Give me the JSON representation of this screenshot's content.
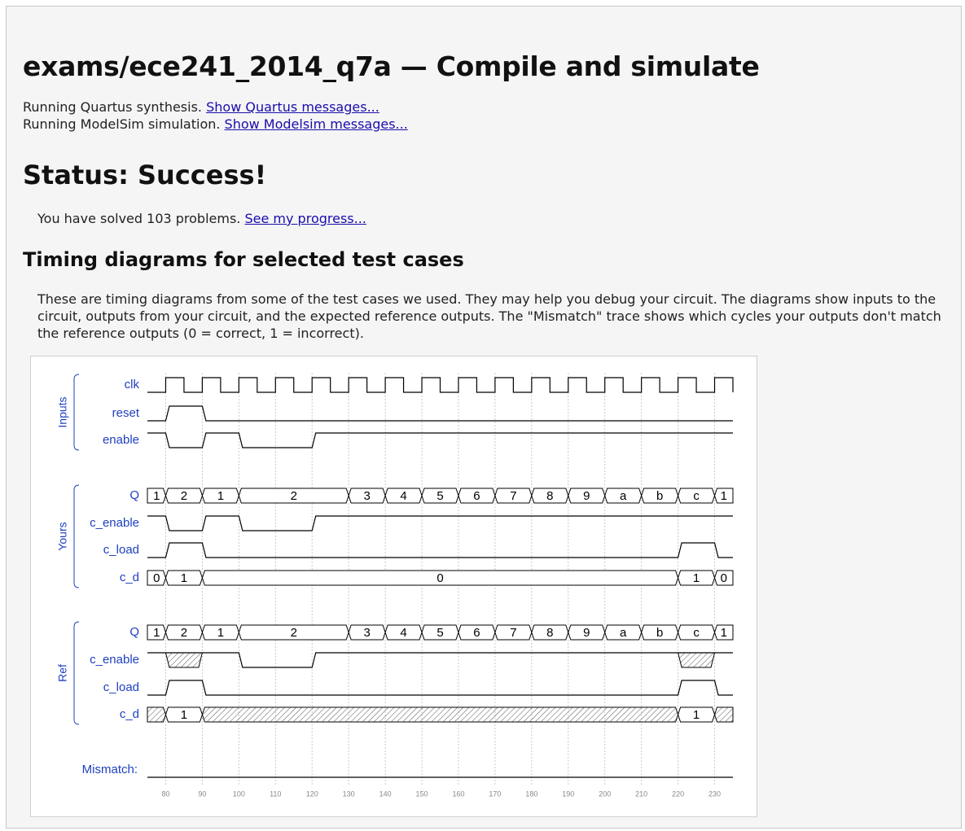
{
  "header": {
    "title": "exams/ece241_2014_q7a — Compile and simulate",
    "quartus_text": "Running Quartus synthesis.",
    "quartus_link": "Show Quartus messages...",
    "modelsim_text": "Running ModelSim simulation.",
    "modelsim_link": "Show Modelsim messages..."
  },
  "status": {
    "heading": "Status: Success!",
    "solved_text": "You have solved 103 problems.",
    "progress_link": "See my progress..."
  },
  "timing": {
    "heading": "Timing diagrams for selected test cases",
    "description": "These are timing diagrams from some of the test cases we used. They may help you debug your circuit. The diagrams show inputs to the circuit, outputs from your circuit, and the expected reference outputs. The \"Mismatch\" trace shows which cycles your outputs don't match the reference outputs (0 = correct, 1 = incorrect)."
  },
  "waveform": {
    "time_start": 75,
    "time_end": 235,
    "ticks": [
      "80",
      "90",
      "100",
      "110",
      "120",
      "130",
      "140",
      "150",
      "160",
      "170",
      "180",
      "190",
      "200",
      "210",
      "220",
      "230"
    ],
    "tick_values": [
      80,
      90,
      100,
      110,
      120,
      130,
      140,
      150,
      160,
      170,
      180,
      190,
      200,
      210,
      220,
      230
    ],
    "groups": [
      {
        "label": "Inputs",
        "signals": [
          "clk",
          "reset",
          "enable"
        ]
      },
      {
        "label": "Yours",
        "signals": [
          "Q",
          "c_enable",
          "c_load",
          "c_d"
        ]
      },
      {
        "label": "Ref",
        "signals": [
          "Q",
          "c_enable",
          "c_load",
          "c_d"
        ]
      }
    ],
    "mismatch_label": "Mismatch:",
    "clk": {
      "first_rise": 80,
      "period": 10
    },
    "inputs": {
      "reset": [
        [
          75,
          0
        ],
        [
          80,
          1
        ],
        [
          90,
          0
        ]
      ],
      "enable": [
        [
          75,
          1
        ],
        [
          80,
          0
        ],
        [
          90,
          1
        ],
        [
          100,
          0
        ],
        [
          120,
          1
        ]
      ]
    },
    "yours": {
      "Q": [
        [
          75,
          "1"
        ],
        [
          80,
          "2"
        ],
        [
          90,
          "1"
        ],
        [
          100,
          "2"
        ],
        [
          130,
          "3"
        ],
        [
          140,
          "4"
        ],
        [
          150,
          "5"
        ],
        [
          160,
          "6"
        ],
        [
          170,
          "7"
        ],
        [
          180,
          "8"
        ],
        [
          190,
          "9"
        ],
        [
          200,
          "a"
        ],
        [
          210,
          "b"
        ],
        [
          220,
          "c"
        ],
        [
          230,
          "1"
        ]
      ],
      "c_enable": [
        [
          75,
          1
        ],
        [
          80,
          0
        ],
        [
          90,
          1
        ],
        [
          100,
          0
        ],
        [
          120,
          1
        ]
      ],
      "c_load": [
        [
          75,
          0
        ],
        [
          80,
          1
        ],
        [
          90,
          0
        ],
        [
          220,
          1
        ],
        [
          230,
          0
        ]
      ],
      "c_d": [
        [
          75,
          "0"
        ],
        [
          80,
          "1"
        ],
        [
          90,
          "0"
        ],
        [
          220,
          "1"
        ],
        [
          230,
          "0"
        ]
      ]
    },
    "ref": {
      "Q": [
        [
          75,
          "1"
        ],
        [
          80,
          "2"
        ],
        [
          90,
          "1"
        ],
        [
          100,
          "2"
        ],
        [
          130,
          "3"
        ],
        [
          140,
          "4"
        ],
        [
          150,
          "5"
        ],
        [
          160,
          "6"
        ],
        [
          170,
          "7"
        ],
        [
          180,
          "8"
        ],
        [
          190,
          "9"
        ],
        [
          200,
          "a"
        ],
        [
          210,
          "b"
        ],
        [
          220,
          "c"
        ],
        [
          230,
          "1"
        ]
      ],
      "c_enable": [
        [
          75,
          1
        ],
        [
          80,
          "x"
        ],
        [
          90,
          1
        ],
        [
          100,
          0
        ],
        [
          120,
          1
        ],
        [
          220,
          "x"
        ],
        [
          230,
          1
        ]
      ],
      "c_load": [
        [
          75,
          0
        ],
        [
          80,
          1
        ],
        [
          90,
          0
        ],
        [
          220,
          1
        ],
        [
          230,
          0
        ]
      ],
      "c_d": [
        [
          75,
          "x"
        ],
        [
          80,
          "1"
        ],
        [
          90,
          "x"
        ],
        [
          220,
          "1"
        ],
        [
          230,
          "x"
        ]
      ]
    },
    "mismatch": [
      [
        75,
        0
      ]
    ],
    "colors": {
      "label": "#1f3fbf",
      "wave": "#000000",
      "grid": "#c8c8c8",
      "tick": "#888888",
      "hatch": "#555555"
    }
  }
}
